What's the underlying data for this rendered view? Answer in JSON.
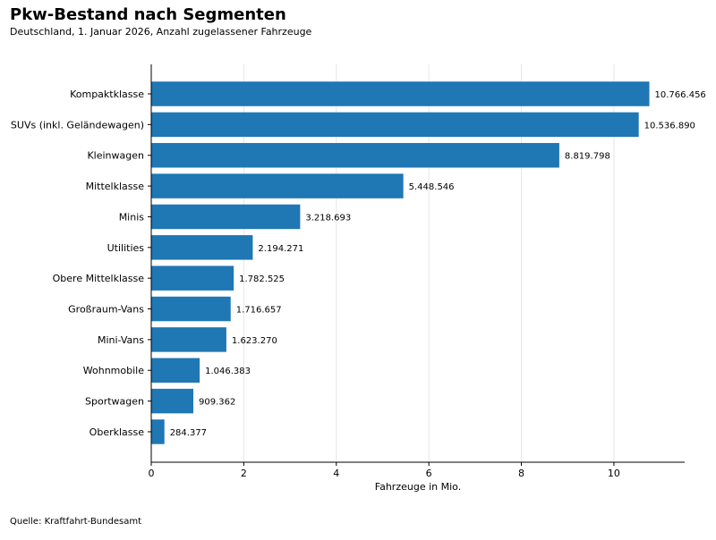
{
  "chart_data": {
    "type": "bar",
    "orientation": "horizontal",
    "title": "Pkw-Bestand nach Segmenten",
    "subtitle": "Deutschland, 1. Januar 2026, Anzahl zugelassener Fahrzeuge",
    "xlabel": "Fahrzeuge in Mio.",
    "ylabel": "",
    "source": "Quelle: Kraftfahrt-Bundesamt",
    "categories": [
      "Kompaktklasse",
      "SUVs (inkl. Geländewagen)",
      "Kleinwagen",
      "Mittelklasse",
      "Minis",
      "Utilities",
      "Obere Mittelklasse",
      "Großraum-Vans",
      "Mini-Vans",
      "Wohnmobile",
      "Sportwagen",
      "Oberklasse"
    ],
    "values": [
      10766456,
      10536890,
      8819798,
      5448546,
      3218693,
      2194271,
      1782525,
      1716657,
      1623270,
      1046383,
      909362,
      284377
    ],
    "data_labels": [
      "10.766.456",
      "10.536.890",
      "8.819.798",
      "5.448.546",
      "3.218.693",
      "2.194.271",
      "1.782.525",
      "1.716.657",
      "1.623.270",
      "1.046.383",
      "909.362",
      "284.377"
    ],
    "x_ticks": [
      0,
      2,
      4,
      6,
      8,
      10
    ],
    "x_tick_labels": [
      "0",
      "2",
      "4",
      "6",
      "8",
      "10"
    ],
    "xlim": [
      0,
      11.53
    ],
    "grid": "vertical",
    "bar_color": "#1f77b4"
  }
}
